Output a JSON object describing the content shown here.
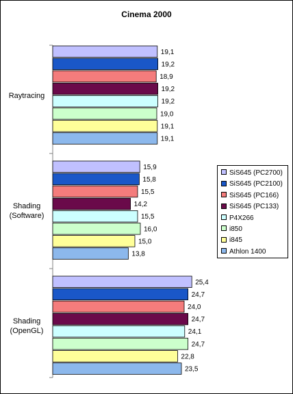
{
  "chart_data": {
    "type": "bar",
    "orientation": "horizontal",
    "title": "Cinema 2000",
    "xlabel": "",
    "ylabel": "",
    "xlim": [
      0,
      30
    ],
    "grid": false,
    "legend_position": "right",
    "categories": [
      "Raytracing",
      "Shading (Software)",
      "Shading (OpenGL)"
    ],
    "category_lines": [
      [
        "Raytracing"
      ],
      [
        "Shading",
        "(Software)"
      ],
      [
        "Shading",
        "(OpenGL)"
      ]
    ],
    "series": [
      {
        "name": "SiS645 (PC2700)",
        "color": "#c0c0ff",
        "values": [
          19.1,
          15.9,
          25.4
        ],
        "labels": [
          "19,1",
          "15,9",
          "25,4"
        ]
      },
      {
        "name": "SiS645 (PC2100)",
        "color": "#1a57c8",
        "values": [
          19.2,
          15.8,
          24.7
        ],
        "labels": [
          "19,2",
          "15,8",
          "24,7"
        ]
      },
      {
        "name": "SiS645 (PC166)",
        "color": "#f47c7c",
        "values": [
          18.9,
          15.5,
          24.0
        ],
        "labels": [
          "18,9",
          "15,5",
          "24,0"
        ]
      },
      {
        "name": "SiS645 (PC133)",
        "color": "#6a0a4a",
        "values": [
          19.2,
          14.2,
          24.7
        ],
        "labels": [
          "19,2",
          "14,2",
          "24,7"
        ]
      },
      {
        "name": "P4X266",
        "color": "#ccffff",
        "values": [
          19.2,
          15.5,
          24.1
        ],
        "labels": [
          "19,2",
          "15,5",
          "24,1"
        ]
      },
      {
        "name": "i850",
        "color": "#ccffcc",
        "values": [
          19.0,
          16.0,
          24.7
        ],
        "labels": [
          "19,0",
          "16,0",
          "24,7"
        ]
      },
      {
        "name": "i845",
        "color": "#ffff99",
        "values": [
          19.1,
          15.0,
          22.8
        ],
        "labels": [
          "19,1",
          "15,0",
          "22,8"
        ]
      },
      {
        "name": "Athlon 1400",
        "color": "#8cb8ec",
        "values": [
          19.1,
          13.8,
          23.5
        ],
        "labels": [
          "19,1",
          "13,8",
          "23,5"
        ]
      }
    ]
  }
}
